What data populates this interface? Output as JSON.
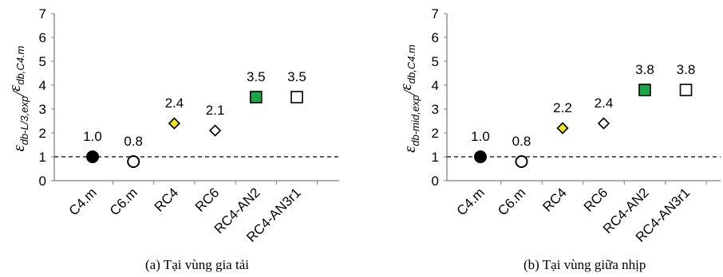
{
  "chart_data": [
    {
      "type": "scatter",
      "caption": "(a)  Tại vùng gia tải",
      "ylabel": {
        "num_base": "ε",
        "num_sub": "db-L/3,exp",
        "sep": "/",
        "den_base": "ε",
        "den_sub": "db,C4.m"
      },
      "ylim": [
        0,
        7
      ],
      "yticks": [
        "0",
        "1",
        "2",
        "3",
        "4",
        "5",
        "6",
        "7"
      ],
      "reference_line": 1,
      "categories": [
        "C4.m",
        "C6.m",
        "RC4",
        "RC6",
        "RC4-AN2",
        "RC4-AN3r1"
      ],
      "values": [
        1.0,
        0.8,
        2.4,
        2.1,
        3.5,
        3.5
      ],
      "labels": [
        "1.0",
        "0.8",
        "2.4",
        "2.1",
        "3.5",
        "3.5"
      ],
      "markers": [
        "circle-filled",
        "circle-open",
        "diamond-filled",
        "diamond-open",
        "square-filled",
        "square-open"
      ],
      "marker_colors": [
        "#000000",
        "#ffffff",
        "#f2e51d",
        "#ffffff",
        "#1aa64a",
        "#ffffff"
      ],
      "grid": false
    },
    {
      "type": "scatter",
      "caption": "(b)  Tại vùng giữa nhịp",
      "ylabel": {
        "num_base": "ε",
        "num_sub": "db-mid,exp",
        "sep": "/",
        "den_base": "ε",
        "den_sub": "db,C4.m"
      },
      "ylim": [
        0,
        7
      ],
      "yticks": [
        "0",
        "1",
        "2",
        "3",
        "4",
        "5",
        "6",
        "7"
      ],
      "reference_line": 1,
      "categories": [
        "C4.m",
        "C6.m",
        "RC4",
        "RC6",
        "RC4-AN2",
        "RC4-AN3r1"
      ],
      "values": [
        1.0,
        0.8,
        2.2,
        2.4,
        3.8,
        3.8
      ],
      "labels": [
        "1.0",
        "0.8",
        "2.2",
        "2.4",
        "3.8",
        "3.8"
      ],
      "markers": [
        "circle-filled",
        "circle-open",
        "diamond-filled",
        "diamond-open",
        "square-filled",
        "square-open"
      ],
      "marker_colors": [
        "#000000",
        "#ffffff",
        "#f2e51d",
        "#ffffff",
        "#1aa64a",
        "#ffffff"
      ],
      "grid": false
    }
  ]
}
